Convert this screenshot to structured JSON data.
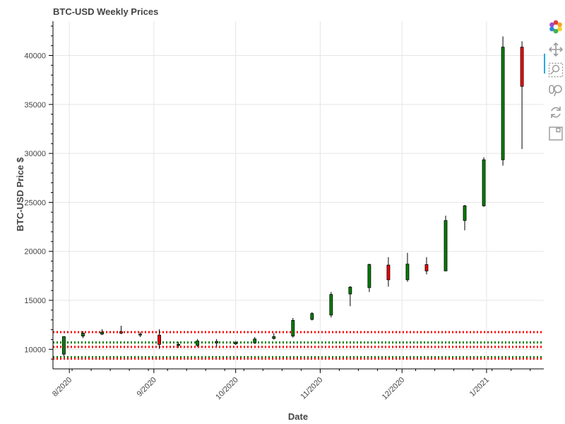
{
  "chart_data": {
    "type": "candlestick",
    "title": "BTC-USD Weekly Prices",
    "xlabel": "Date",
    "ylabel": "BTC-USD Price $",
    "x_tick_labels": [
      "8/2020",
      "9/2020",
      "10/2020",
      "11/2020",
      "12/2020",
      "1/2021"
    ],
    "x_tick_dates": [
      "2020-08-01",
      "2020-09-01",
      "2020-10-01",
      "2020-11-01",
      "2020-12-01",
      "2021-01-01"
    ],
    "xlim": [
      "2020-07-26",
      "2021-01-22"
    ],
    "y_ticks": [
      10000,
      15000,
      20000,
      25000,
      30000,
      35000,
      40000
    ],
    "ylim": [
      8000,
      43500
    ],
    "grid": true,
    "up_color": "#008000",
    "down_color": "#ff0000",
    "horizontal_lines": [
      {
        "y": 11750,
        "color": "#ff0000",
        "style": "dotted"
      },
      {
        "y": 10700,
        "color": "#008000",
        "style": "dotted"
      },
      {
        "y": 10250,
        "color": "#ff0000",
        "style": "dotted"
      },
      {
        "y": 9200,
        "color": "#008000",
        "style": "dotted"
      },
      {
        "y": 9050,
        "color": "#ff0000",
        "style": "dotted"
      }
    ],
    "candles": [
      {
        "date": "2020-07-30",
        "open": 9500,
        "high": 11300,
        "low": 9300,
        "close": 11300
      },
      {
        "date": "2020-08-06",
        "open": 11350,
        "high": 11850,
        "low": 11150,
        "close": 11650
      },
      {
        "date": "2020-08-13",
        "open": 11550,
        "high": 12050,
        "low": 11450,
        "close": 11750
      },
      {
        "date": "2020-08-20",
        "open": 11800,
        "high": 12400,
        "low": 11550,
        "close": 11650
      },
      {
        "date": "2020-08-27",
        "open": 11450,
        "high": 11750,
        "low": 11250,
        "close": 11550
      },
      {
        "date": "2020-09-03",
        "open": 11450,
        "high": 12050,
        "low": 10050,
        "close": 10500
      },
      {
        "date": "2020-09-10",
        "open": 10400,
        "high": 10750,
        "low": 10150,
        "close": 10500
      },
      {
        "date": "2020-09-17",
        "open": 10400,
        "high": 11050,
        "low": 10250,
        "close": 10850
      },
      {
        "date": "2020-09-24",
        "open": 10650,
        "high": 11050,
        "low": 10300,
        "close": 10800
      },
      {
        "date": "2020-10-01",
        "open": 10550,
        "high": 10850,
        "low": 10450,
        "close": 10700
      },
      {
        "date": "2020-10-08",
        "open": 10650,
        "high": 11250,
        "low": 10550,
        "close": 11050
      },
      {
        "date": "2020-10-15",
        "open": 11100,
        "high": 11650,
        "low": 11000,
        "close": 11300
      },
      {
        "date": "2020-10-22",
        "open": 11350,
        "high": 13200,
        "low": 11200,
        "close": 12950
      },
      {
        "date": "2020-10-29",
        "open": 13050,
        "high": 13800,
        "low": 12950,
        "close": 13650
      },
      {
        "date": "2020-11-05",
        "open": 13500,
        "high": 15850,
        "low": 13250,
        "close": 15600
      },
      {
        "date": "2020-11-12",
        "open": 15650,
        "high": 16450,
        "low": 14400,
        "close": 16350
      },
      {
        "date": "2020-11-19",
        "open": 16300,
        "high": 18750,
        "low": 15850,
        "close": 18650
      },
      {
        "date": "2020-11-26",
        "open": 18600,
        "high": 19400,
        "low": 16400,
        "close": 17100
      },
      {
        "date": "2020-12-03",
        "open": 17100,
        "high": 19850,
        "low": 16900,
        "close": 18700
      },
      {
        "date": "2020-12-10",
        "open": 18650,
        "high": 19400,
        "low": 17650,
        "close": 18000
      },
      {
        "date": "2020-12-17",
        "open": 18000,
        "high": 23650,
        "low": 18000,
        "close": 23150
      },
      {
        "date": "2020-12-24",
        "open": 23150,
        "high": 24750,
        "low": 22150,
        "close": 24650
      },
      {
        "date": "2020-12-31",
        "open": 24650,
        "high": 29600,
        "low": 24550,
        "close": 29350
      },
      {
        "date": "2021-01-07",
        "open": 29350,
        "high": 41950,
        "low": 28750,
        "close": 40850
      },
      {
        "date": "2021-01-14",
        "open": 40850,
        "high": 41450,
        "low": 30450,
        "close": 36850
      }
    ]
  },
  "toolbar": {
    "items": [
      {
        "name": "bokeh-logo",
        "icon": "bokeh-logo-icon",
        "active": false
      },
      {
        "name": "pan",
        "icon": "pan-icon",
        "active": true
      },
      {
        "name": "box-zoom",
        "icon": "box-zoom-icon",
        "active": false
      },
      {
        "name": "wheel-zoom",
        "icon": "wheel-zoom-icon",
        "active": false
      },
      {
        "name": "reset",
        "icon": "reset-icon",
        "active": false
      },
      {
        "name": "save",
        "icon": "save-icon",
        "active": false
      }
    ]
  }
}
